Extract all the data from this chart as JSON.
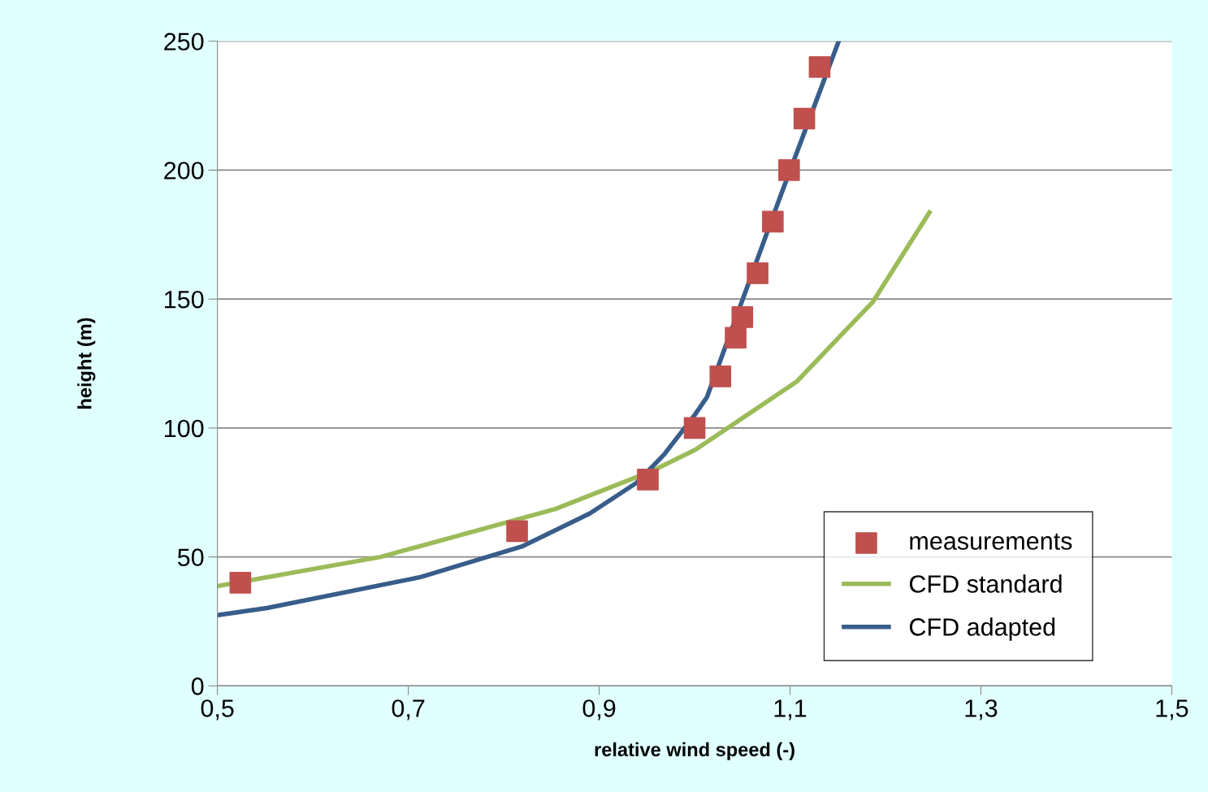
{
  "chart_data": {
    "type": "line",
    "xlabel": "relative wind speed (-)",
    "ylabel": "height (m)",
    "xlim": [
      0.5,
      1.5
    ],
    "xticks": [
      {
        "value": 0.5,
        "label": "0,5"
      },
      {
        "value": 0.7,
        "label": "0,7"
      },
      {
        "value": 0.9,
        "label": "0,9"
      },
      {
        "value": 1.1,
        "label": "1,1"
      },
      {
        "value": 1.3,
        "label": "1,3"
      },
      {
        "value": 1.5,
        "label": "1,5"
      }
    ],
    "ylim": [
      0,
      250
    ],
    "yticks": [
      0,
      50,
      100,
      150,
      200,
      250
    ],
    "grid": "y",
    "legend": "bottom right",
    "series": [
      {
        "name": "measurements",
        "type": "scatter",
        "marker": "square",
        "color": "#c0504d",
        "x": [
          0.524,
          0.814,
          0.951,
          1.0,
          1.027,
          1.043,
          1.05,
          1.066,
          1.082,
          1.099,
          1.115,
          1.131
        ],
        "values": [
          40,
          60,
          80,
          100,
          120,
          135,
          143,
          160,
          180,
          200,
          220,
          240
        ]
      },
      {
        "name": "CFD standard",
        "color": "#9bbb59",
        "x": [
          0.5,
          0.671,
          0.854,
          0.956,
          1.001,
          1.107,
          1.187,
          1.246
        ],
        "values": [
          38.7,
          50,
          68.6,
          83.4,
          91.6,
          118,
          149,
          183.6
        ]
      },
      {
        "name": "CFD adapted",
        "color": "#385d8a",
        "x": [
          0.5,
          0.552,
          0.713,
          0.82,
          0.89,
          0.939,
          0.968,
          1.001,
          1.013,
          1.09,
          1.151
        ],
        "values": [
          27.4,
          30.2,
          42.2,
          54.2,
          66.8,
          78.7,
          89.7,
          105.5,
          112,
          190,
          250
        ]
      }
    ]
  }
}
